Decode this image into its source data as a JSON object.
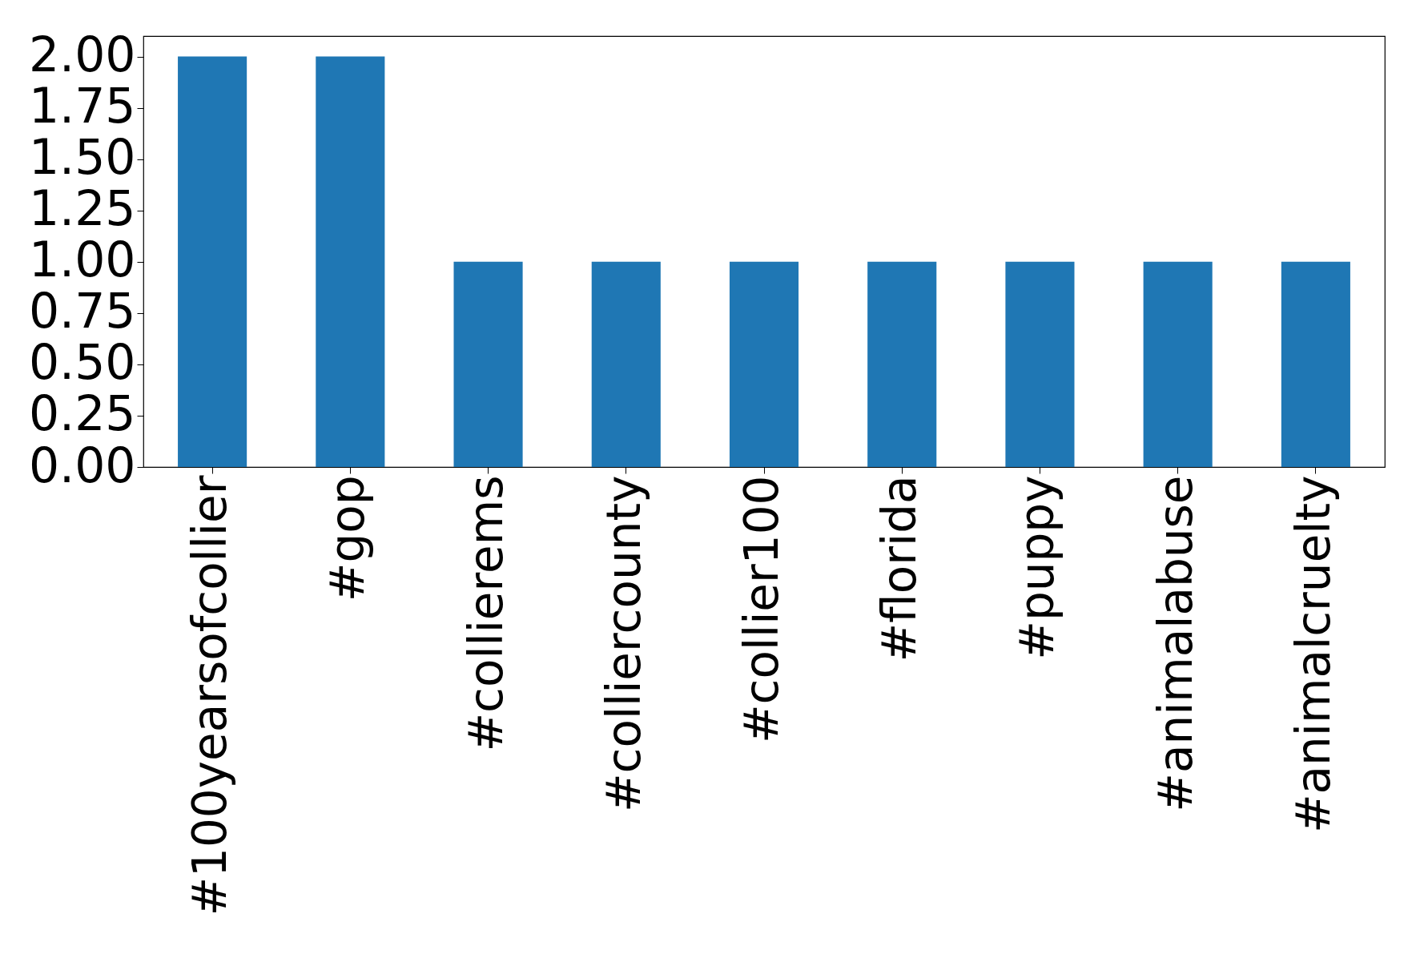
{
  "chart_data": {
    "type": "bar",
    "categories": [
      "#100yearsofcollier",
      "#gop",
      "#collierems",
      "#colliercounty",
      "#collier100",
      "#florida",
      "#puppy",
      "#animalabuse",
      "#animalcruelty"
    ],
    "values": [
      2,
      2,
      1,
      1,
      1,
      1,
      1,
      1,
      1
    ],
    "color": "#1f77b4",
    "ylim": [
      0,
      2.1
    ],
    "yticks": [
      {
        "value": 0,
        "label": "0.00"
      },
      {
        "value": 0.25,
        "label": "0.25"
      },
      {
        "value": 0.5,
        "label": "0.50"
      },
      {
        "value": 0.75,
        "label": "0.75"
      },
      {
        "value": 1,
        "label": "1.00"
      },
      {
        "value": 1.25,
        "label": "1.25"
      },
      {
        "value": 1.5,
        "label": "1.50"
      },
      {
        "value": 1.75,
        "label": "1.75"
      },
      {
        "value": 2,
        "label": "2.00"
      }
    ],
    "grid": false
  }
}
